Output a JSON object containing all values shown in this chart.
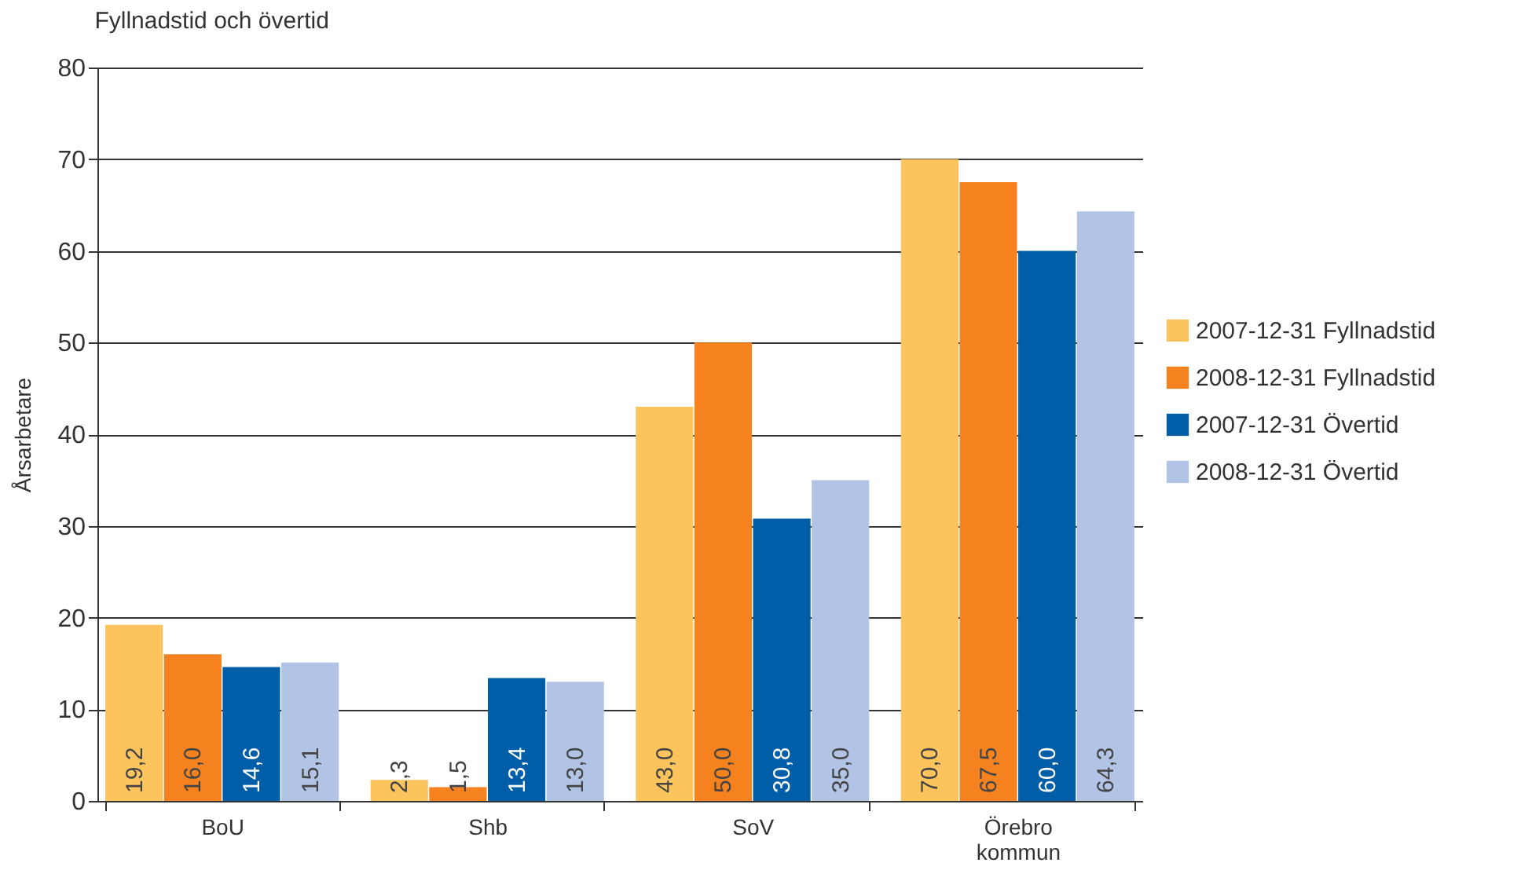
{
  "chart_data": {
    "type": "bar",
    "title": "Fyllnadstid och övertid",
    "ylabel": "Årsarbetare",
    "categories": [
      "BoU",
      "Shb",
      "SoV",
      "Örebro kommun"
    ],
    "series": [
      {
        "name": "2007-12-31 Fyllnadstid",
        "color": "#fdc35c",
        "values": [
          19.2,
          2.3,
          43.0,
          70.0
        ],
        "value_labels": [
          "19,2",
          "2,3",
          "43,0",
          "70,0"
        ]
      },
      {
        "name": "2008-12-31 Fyllnadstid",
        "color": "#f5821f",
        "values": [
          16.0,
          1.5,
          50.0,
          67.5
        ],
        "value_labels": [
          "16,0",
          "1,5",
          "50,0",
          "67,5"
        ]
      },
      {
        "name": "2007-12-31 Övertid",
        "color": "#005ea8",
        "values": [
          14.6,
          13.4,
          30.8,
          60.0
        ],
        "value_labels": [
          "14,6",
          "13,4",
          "30,8",
          "60,0"
        ]
      },
      {
        "name": "2008-12-31 Övertid",
        "color": "#b1c4e5",
        "values": [
          15.1,
          13.0,
          35.0,
          64.3
        ],
        "value_labels": [
          "15,1",
          "13,0",
          "35,0",
          "64,3"
        ]
      }
    ],
    "ylim": [
      0,
      80
    ],
    "yticks": [
      0,
      10,
      20,
      30,
      40,
      50,
      60,
      70,
      80
    ],
    "grid": "y",
    "legend": "right"
  }
}
